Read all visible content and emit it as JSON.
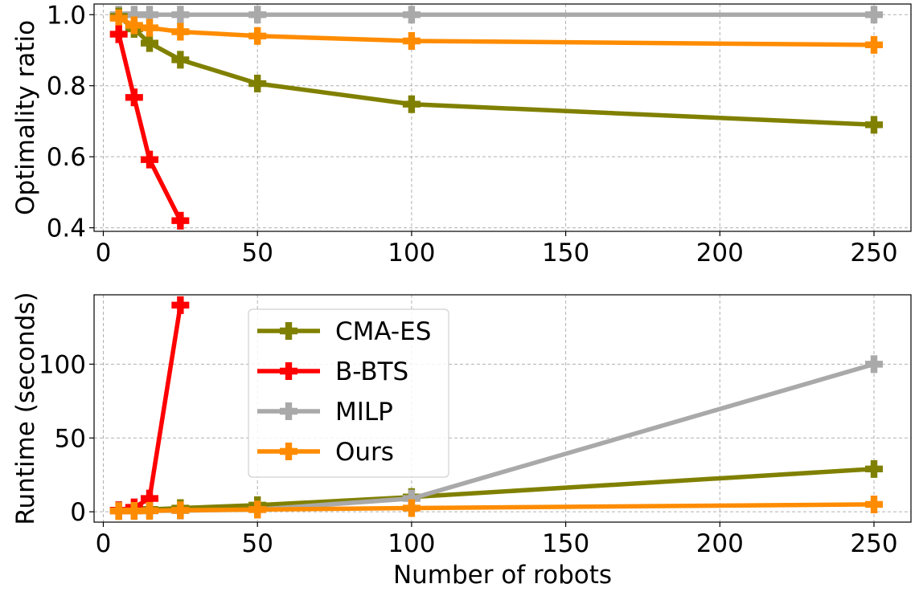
{
  "chart_data": [
    {
      "type": "line",
      "panel": "top",
      "xlabel": "",
      "ylabel": "Optimality ratio",
      "xlim": [
        -3,
        262
      ],
      "ylim": [
        0.39,
        1.03
      ],
      "xticks": [
        0,
        50,
        100,
        150,
        200,
        250
      ],
      "yticks": [
        0.4,
        0.6,
        0.8,
        1.0
      ],
      "ytick_labels": [
        "0.4",
        "0.6",
        "0.8",
        "1.0"
      ],
      "grid": true,
      "series": [
        {
          "name": "MILP",
          "color": "#a9a9a9",
          "x": [
            5,
            10,
            15,
            25,
            50,
            100,
            250
          ],
          "y": [
            1.0,
            1.0,
            1.0,
            1.0,
            1.0,
            1.0,
            1.0
          ]
        },
        {
          "name": "CMA-ES",
          "color": "#808000",
          "x": [
            5,
            10,
            15,
            25,
            50,
            100,
            250
          ],
          "y": [
            0.995,
            0.96,
            0.92,
            0.873,
            0.806,
            0.748,
            0.69
          ]
        },
        {
          "name": "Ours",
          "color": "#ff8c00",
          "x": [
            5,
            10,
            15,
            25,
            50,
            100,
            250
          ],
          "y": [
            0.99,
            0.97,
            0.963,
            0.952,
            0.94,
            0.926,
            0.915
          ]
        },
        {
          "name": "B-BTS",
          "color": "#ff0000",
          "x": [
            5,
            10,
            15,
            25
          ],
          "y": [
            0.945,
            0.767,
            0.592,
            0.42
          ]
        }
      ]
    },
    {
      "type": "line",
      "panel": "bottom",
      "xlabel": "Number of robots",
      "ylabel": "Runtime (seconds)",
      "xlim": [
        -3,
        262
      ],
      "ylim": [
        -7,
        147
      ],
      "xticks": [
        0,
        50,
        100,
        150,
        200,
        250
      ],
      "yticks": [
        0,
        50,
        100
      ],
      "ytick_labels": [
        "0",
        "50",
        "100"
      ],
      "grid": true,
      "legend": "upper-left",
      "series": [
        {
          "name": "CMA-ES",
          "color": "#808000",
          "x": [
            5,
            10,
            15,
            25,
            50,
            100,
            250
          ],
          "y": [
            1,
            1.3,
            1.6,
            2.5,
            4.5,
            10,
            29
          ]
        },
        {
          "name": "B-BTS",
          "color": "#ff0000",
          "x": [
            5,
            10,
            15,
            25
          ],
          "y": [
            1,
            3,
            9,
            140
          ]
        },
        {
          "name": "MILP",
          "color": "#a9a9a9",
          "x": [
            5,
            10,
            15,
            25,
            50,
            100,
            250
          ],
          "y": [
            0.5,
            0.5,
            0.6,
            0.8,
            1.5,
            9,
            100
          ]
        },
        {
          "name": "Ours",
          "color": "#ff8c00",
          "x": [
            5,
            10,
            15,
            25,
            50,
            100,
            250
          ],
          "y": [
            0.5,
            0.6,
            0.7,
            1,
            1.5,
            2.5,
            5
          ]
        }
      ]
    }
  ]
}
